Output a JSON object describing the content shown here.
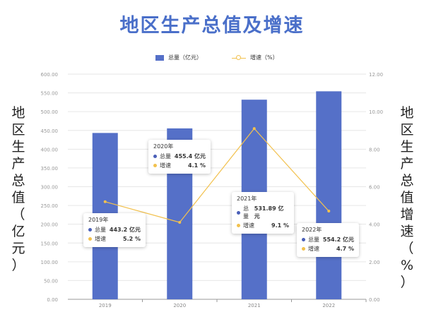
{
  "title": "地区生产总值及增速",
  "colors": {
    "bar": "#5570c8",
    "line": "#f2c14e",
    "title": "#4a6fc9"
  },
  "chart_data": {
    "type": "bar",
    "categories": [
      "2019",
      "2020",
      "2021",
      "2022"
    ],
    "series": [
      {
        "name": "总量（亿元）",
        "type": "bar",
        "axis": "left",
        "values": [
          443.2,
          455.4,
          531.89,
          554.2
        ]
      },
      {
        "name": "增速（%）",
        "type": "line",
        "axis": "right",
        "values": [
          5.2,
          4.1,
          9.1,
          4.7
        ]
      }
    ],
    "ylabel_left": "地区生产总值（亿元）",
    "ylabel_right": "地区生产总值增速（%）",
    "ylim_left": [
      0,
      600
    ],
    "ylim_right": [
      0,
      12
    ],
    "yticks_left": [
      "0.00",
      "50.00",
      "100.00",
      "150.00",
      "200.00",
      "250.00",
      "300.00",
      "350.00",
      "400.00",
      "450.00",
      "500.00",
      "550.00",
      "600.00"
    ],
    "yticks_right": [
      "0.00",
      "2.00",
      "4.00",
      "6.00",
      "8.00",
      "10.00",
      "12.00"
    ],
    "grid": true,
    "legend_position": "top-center"
  },
  "tooltips": [
    {
      "year": "2019年",
      "total_label": "总量",
      "total": "443.2 亿元",
      "rate_label": "增速",
      "rate": "5.2 %"
    },
    {
      "year": "2020年",
      "total_label": "总量",
      "total": "455.4 亿元",
      "rate_label": "增速",
      "rate": "4.1 %"
    },
    {
      "year": "2021年",
      "total_label": "总量",
      "total": "531.89 亿元",
      "rate_label": "增速",
      "rate": "9.1 %"
    },
    {
      "year": "2022年",
      "total_label": "总量",
      "total": "554.2 亿元",
      "rate_label": "增速",
      "rate": "4.7 %"
    }
  ]
}
